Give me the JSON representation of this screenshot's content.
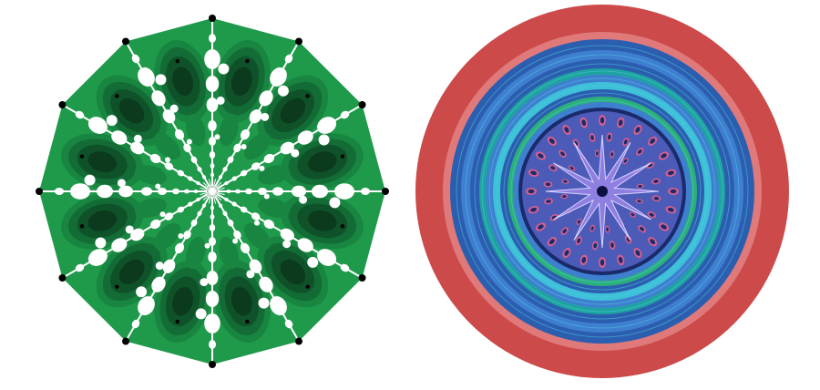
{
  "figure": {
    "panels": [
      {
        "id": "left-panel",
        "kind": "fractal-dodecagon",
        "symmetry_order": 12,
        "colors": {
          "background": "#ffffff",
          "outer_fill": "#1e9a4a",
          "level_1": "#188540",
          "level_2": "#136c35",
          "level_3": "#0f5229",
          "core": "#0b3a1d",
          "spoke": "#ffffff",
          "vertex_dot": "#000000"
        }
      },
      {
        "id": "right-panel",
        "kind": "concentric-rings-with-star",
        "symmetry_order": 12,
        "colors": {
          "outer_ring": "#cc4a4a",
          "pink_ring": "#e07a7a",
          "ring_blue_1": "#2c5eb0",
          "ring_blue_2": "#3f7fd0",
          "ring_teal": "#1fa3a0",
          "ring_green": "#2bb07a",
          "ring_cyan": "#3ec0d8",
          "inner_dark": "#1a2a6a",
          "inner_mid": "#4c5bb8",
          "star": "#8e7fe0",
          "center_dot": "#0a1040"
        }
      }
    ]
  }
}
